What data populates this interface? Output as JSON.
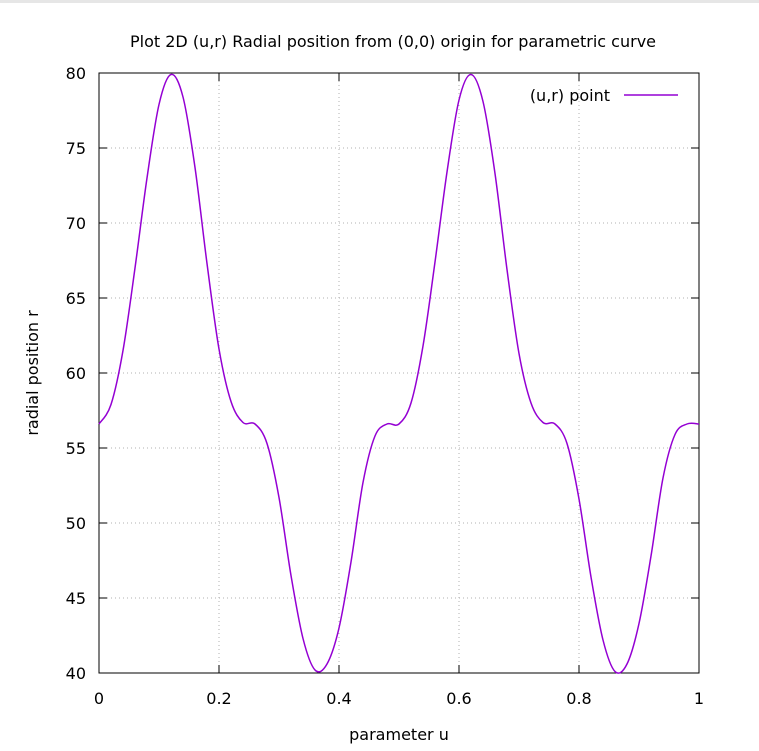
{
  "chart_data": {
    "type": "line",
    "title": "Plot 2D (u,r) Radial position from (0,0) origin for parametric curve",
    "xlabel": "parameter u",
    "ylabel": "radial position r",
    "xlim": [
      0,
      1
    ],
    "ylim": [
      40,
      80
    ],
    "x_ticks": [
      "0",
      "0.2",
      "0.4",
      "0.6",
      "0.8",
      "1"
    ],
    "y_ticks": [
      "40",
      "45",
      "50",
      "55",
      "60",
      "65",
      "70",
      "75",
      "80"
    ],
    "grid": true,
    "legend_position": "top-right",
    "series": [
      {
        "name": "(u,r) point",
        "color": "#9400d3",
        "x": [
          0,
          0.02,
          0.04,
          0.06,
          0.08,
          0.1,
          0.12,
          0.14,
          0.16,
          0.18,
          0.2,
          0.22,
          0.24,
          0.26,
          0.28,
          0.3,
          0.32,
          0.34,
          0.36,
          0.38,
          0.4,
          0.42,
          0.44,
          0.46,
          0.48,
          0.5,
          0.52,
          0.54,
          0.56,
          0.58,
          0.6,
          0.62,
          0.64,
          0.66,
          0.68,
          0.7,
          0.72,
          0.74,
          0.76,
          0.78,
          0.8,
          0.82,
          0.84,
          0.86,
          0.88,
          0.9,
          0.92,
          0.94,
          0.96,
          0.98,
          1.0
        ],
        "values": [
          56.6,
          57.9,
          61.5,
          67.0,
          73.0,
          77.9,
          79.9,
          78.4,
          73.7,
          67.3,
          61.6,
          58.1,
          56.7,
          56.6,
          55.3,
          51.7,
          46.5,
          42.3,
          40.2,
          40.6,
          43.0,
          47.4,
          52.7,
          55.8,
          56.6,
          56.6,
          58.0,
          61.8,
          67.4,
          73.4,
          78.2,
          79.9,
          78.1,
          73.3,
          66.9,
          61.3,
          58.0,
          56.7,
          56.6,
          55.3,
          51.6,
          46.4,
          42.2,
          40.1,
          40.6,
          43.3,
          47.8,
          53.0,
          55.9,
          56.6,
          56.6
        ]
      }
    ]
  }
}
